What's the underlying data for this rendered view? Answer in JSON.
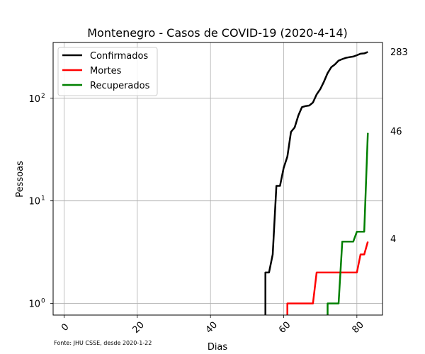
{
  "chart_data": {
    "type": "line",
    "title": "Montenegro - Casos de COVID-19 (2020-4-14)",
    "xlabel": "Dias",
    "ylabel": "Pessoas",
    "source_note": "Fonte: JHU CSSE, desde 2020-1-22",
    "yscale": "log",
    "xlim": [
      -3,
      87
    ],
    "ylim": [
      0.77,
      350
    ],
    "grid": true,
    "legend_position": "upper-left",
    "x_ticks": [
      0,
      20,
      40,
      60,
      80
    ],
    "x_tick_labels": [
      "0",
      "20",
      "40",
      "60",
      "80"
    ],
    "y_ticks": [
      {
        "value": 1,
        "base": "10",
        "exp": "0"
      },
      {
        "value": 10,
        "base": "10",
        "exp": "1"
      },
      {
        "value": 100,
        "base": "10",
        "exp": "2"
      }
    ],
    "end_labels": [
      "283",
      "46",
      "4"
    ],
    "series": [
      {
        "name": "Confirmados",
        "color": "#000000",
        "x": [
          55,
          55,
          56,
          57,
          58,
          59,
          60,
          61,
          62,
          63,
          64,
          65,
          66,
          67,
          68,
          69,
          70,
          71,
          72,
          73,
          74,
          75,
          76,
          77,
          78,
          79,
          80,
          81,
          82,
          83
        ],
        "y": [
          0.5,
          2,
          2,
          3,
          14,
          14,
          21,
          27,
          47,
          52,
          68,
          82,
          84,
          85,
          91,
          109,
          123,
          145,
          176,
          201,
          214,
          233,
          241,
          248,
          252,
          255,
          263,
          272,
          274,
          283
        ]
      },
      {
        "name": "Mortes",
        "color": "#ff0000",
        "x": [
          61,
          61,
          62,
          63,
          64,
          65,
          66,
          67,
          68,
          69,
          70,
          71,
          72,
          73,
          74,
          75,
          76,
          77,
          78,
          79,
          80,
          81,
          82,
          83
        ],
        "y": [
          0.5,
          1,
          1,
          1,
          1,
          1,
          1,
          1,
          1,
          2,
          2,
          2,
          2,
          2,
          2,
          2,
          2,
          2,
          2,
          2,
          2,
          3,
          3,
          4
        ]
      },
      {
        "name": "Recuperados",
        "color": "#008000",
        "x": [
          72,
          72,
          73,
          74,
          75,
          76,
          77,
          78,
          79,
          80,
          81,
          82,
          83
        ],
        "y": [
          0.5,
          1,
          1,
          1,
          1,
          4,
          4,
          4,
          4,
          5,
          5,
          5,
          46
        ]
      }
    ]
  }
}
